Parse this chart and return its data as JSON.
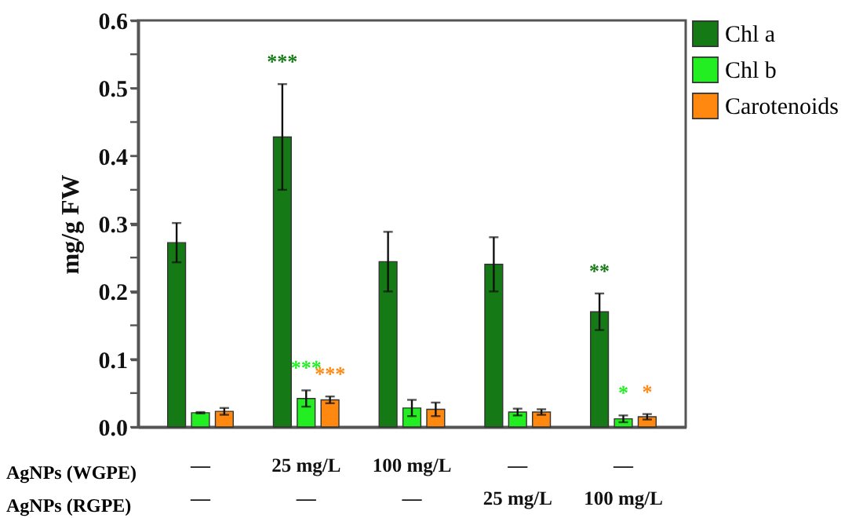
{
  "chart_data": {
    "type": "bar",
    "ylabel": "mg/g FW",
    "categories": [
      "—\n—",
      "25 mg/L\n—",
      "100 mg/L\n—",
      "—\n25 mg/L",
      "—\n100 mg/L"
    ],
    "series": [
      {
        "name": "Chl a",
        "color": "#157a15",
        "values": [
          0.272,
          0.428,
          0.244,
          0.24,
          0.17
        ],
        "errors": [
          0.029,
          0.078,
          0.044,
          0.04,
          0.027
        ],
        "value_labels": [
          null,
          "***",
          null,
          null,
          "**"
        ]
      },
      {
        "name": "Chl b",
        "color": "#22ee22",
        "values": [
          0.021,
          0.042,
          0.028,
          0.022,
          0.012
        ],
        "errors": [
          0.001,
          0.012,
          0.012,
          0.005,
          0.005
        ],
        "value_labels": [
          null,
          "***",
          null,
          null,
          "*"
        ]
      },
      {
        "name": "Carotenoids",
        "color": "#ff8811",
        "values": [
          0.023,
          0.04,
          0.026,
          0.022,
          0.015
        ],
        "errors": [
          0.005,
          0.005,
          0.01,
          0.004,
          0.004
        ],
        "value_labels": [
          null,
          "***",
          null,
          null,
          "*"
        ]
      }
    ],
    "ylim": [
      0,
      0.6
    ],
    "yticks": [
      {
        "value": 0,
        "label": "0.0"
      },
      {
        "value": 0.05,
        "label": null
      },
      {
        "value": 0.1,
        "label": "0.1"
      },
      {
        "value": 0.15,
        "label": null
      },
      {
        "value": 0.2,
        "label": "0.2"
      },
      {
        "value": 0.25,
        "label": null
      },
      {
        "value": 0.3,
        "label": "0.3"
      },
      {
        "value": 0.35,
        "label": null
      },
      {
        "value": 0.4,
        "label": "0.4"
      },
      {
        "value": 0.45,
        "label": null
      },
      {
        "value": 0.5,
        "label": "0.5"
      },
      {
        "value": 0.55,
        "label": null
      },
      {
        "value": 0.6,
        "label": "0.6"
      }
    ],
    "annotations": [
      "AgNPs (WGPE)",
      "AgNPs (RGPE)"
    ],
    "legend": "top right",
    "grid": false
  }
}
